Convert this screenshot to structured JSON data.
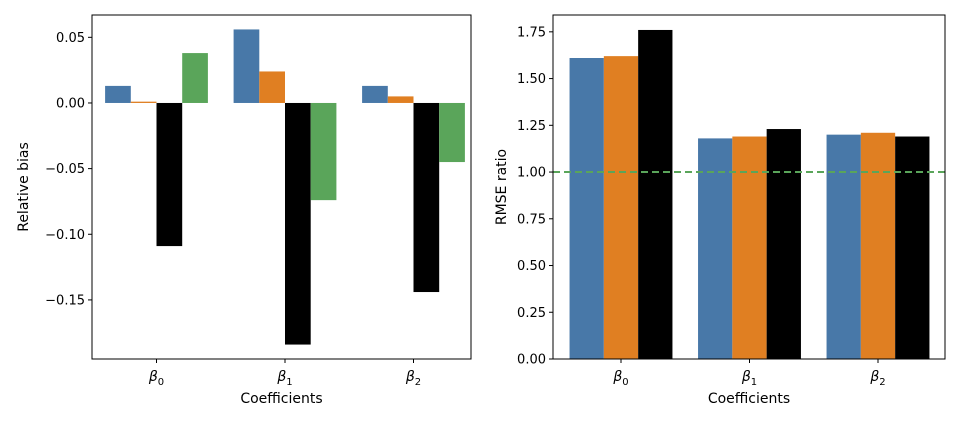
{
  "chart_data": [
    {
      "type": "bar",
      "title": "",
      "xlabel": "Coefficients",
      "ylabel": "Relative bias",
      "categories": [
        {
          "symbol": "β",
          "sub": "0"
        },
        {
          "symbol": "β",
          "sub": "1"
        },
        {
          "symbol": "β",
          "sub": "2"
        }
      ],
      "ylim": [
        -0.195,
        0.067
      ],
      "yticks": [
        "0.05",
        "0.00",
        "−0.05",
        "−0.10",
        "−0.15"
      ],
      "ytick_values": [
        0.05,
        0.0,
        -0.05,
        -0.1,
        -0.15
      ],
      "series": [
        {
          "name": "series-1",
          "color": "#4878a8",
          "values": [
            0.013,
            0.056,
            0.013
          ]
        },
        {
          "name": "series-2",
          "color": "#e07f22",
          "values": [
            0.001,
            0.024,
            0.005
          ]
        },
        {
          "name": "series-3",
          "color": "#000000",
          "values": [
            -0.109,
            -0.184,
            -0.144
          ]
        },
        {
          "name": "series-4",
          "color": "#5aa55a",
          "values": [
            0.038,
            -0.074,
            -0.045
          ]
        }
      ],
      "grid": false,
      "legend": "none"
    },
    {
      "type": "bar",
      "title": "",
      "xlabel": "Coefficients",
      "ylabel": "RMSE ratio",
      "categories": [
        {
          "symbol": "β",
          "sub": "0"
        },
        {
          "symbol": "β",
          "sub": "1"
        },
        {
          "symbol": "β",
          "sub": "2"
        }
      ],
      "ylim": [
        0,
        1.84
      ],
      "yticks": [
        "0.00",
        "0.25",
        "0.50",
        "0.75",
        "1.00",
        "1.25",
        "1.50",
        "1.75"
      ],
      "ytick_values": [
        0,
        0.25,
        0.5,
        0.75,
        1.0,
        1.25,
        1.5,
        1.75
      ],
      "series": [
        {
          "name": "series-1",
          "color": "#4878a8",
          "values": [
            1.61,
            1.18,
            1.2
          ]
        },
        {
          "name": "series-2",
          "color": "#e07f22",
          "values": [
            1.62,
            1.19,
            1.21
          ]
        },
        {
          "name": "series-3",
          "color": "#000000",
          "values": [
            1.76,
            1.23,
            1.19
          ]
        }
      ],
      "reference_line": {
        "value": 1.0,
        "color": "#5aa55a",
        "style": "dashed"
      },
      "grid": false,
      "legend": "none"
    }
  ]
}
